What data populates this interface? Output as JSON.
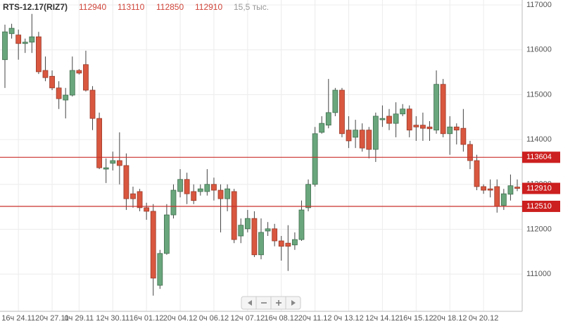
{
  "chart_data": {
    "type": "candlestick",
    "title": "RTS-12.17(RIZ7)",
    "volume_label": "15,5 тыс.",
    "up_color": "#6aa67c",
    "down_color": "#d9573f",
    "level_color": "#c9302c",
    "grid": true,
    "categories": [
      null,
      null,
      "16ч 24.11",
      null,
      null,
      null,
      null,
      "20ч 27.11",
      null,
      null,
      null,
      "0ч 29.11",
      null,
      null,
      null,
      null,
      "12ч 30.11",
      null,
      null,
      null,
      null,
      "16ч 01.12",
      null,
      null,
      null,
      null,
      "20ч 04.12",
      null,
      null,
      null,
      null,
      "0ч 06.12",
      null,
      null,
      null,
      null,
      "12ч 07.12",
      null,
      null,
      null,
      null,
      "16ч 08.12",
      null,
      null,
      null,
      null,
      "20ч 11.12",
      null,
      null,
      null,
      null,
      "0ч 13.12",
      null,
      null,
      null,
      null,
      "12ч 14.12",
      null,
      null,
      null,
      null,
      "16ч 15.12",
      null,
      null,
      null,
      null,
      "20ч 18.12",
      null,
      null,
      null,
      null,
      "0ч 20.12",
      null,
      null,
      null,
      null,
      null
    ],
    "open": [
      115780,
      116360,
      116330,
      116140,
      116170,
      116290,
      115540,
      115410,
      115150,
      114880,
      114990,
      115540,
      115670,
      115100,
      114470,
      113340,
      113470,
      113530,
      113420,
      112790,
      112840,
      112480,
      112400,
      110750,
      111460,
      112320,
      112840,
      113110,
      112840,
      112840,
      112840,
      113000,
      112870,
      112680,
      112840,
      111850,
      112010,
      112240,
      111430,
      111960,
      112010,
      111740,
      111690,
      111650,
      111770,
      112480,
      113000,
      114160,
      114320,
      114600,
      115100,
      114210,
      114050,
      114210,
      114210,
      113780,
      114440,
      114520,
      114360,
      114570,
      114680,
      114320,
      114320,
      114280,
      114210,
      115230,
      114130,
      114280,
      114250,
      113890,
      113530,
      112950,
      112900,
      112950,
      112530,
      112780,
      112940
    ],
    "high": [
      116560,
      116580,
      116450,
      116250,
      116800,
      116400,
      115850,
      115540,
      115300,
      115150,
      115850,
      115570,
      115980,
      115190,
      114600,
      113580,
      113730,
      114160,
      113690,
      112950,
      112900,
      112590,
      112560,
      111540,
      112560,
      113000,
      113340,
      113260,
      113000,
      113000,
      113340,
      113150,
      113000,
      113000,
      112900,
      112240,
      112430,
      112400,
      112240,
      112160,
      112120,
      111850,
      112090,
      111930,
      112640,
      113110,
      114280,
      114520,
      115350,
      115150,
      115150,
      114520,
      114440,
      114360,
      114280,
      114600,
      114760,
      114680,
      114830,
      114790,
      114760,
      114520,
      114600,
      114410,
      115540,
      115350,
      114520,
      114360,
      114680,
      113970,
      113660,
      113000,
      113110,
      113110,
      112900,
      113220,
      113110
    ],
    "low": [
      115150,
      116250,
      115780,
      115930,
      115930,
      115460,
      115300,
      115100,
      114680,
      114470,
      114960,
      115450,
      115070,
      114210,
      113340,
      113030,
      113310,
      113000,
      112430,
      112480,
      112400,
      112210,
      110520,
      110670,
      111430,
      112240,
      112710,
      112560,
      112560,
      112750,
      112750,
      112640,
      111930,
      112400,
      111690,
      111690,
      111930,
      111380,
      111330,
      111850,
      111620,
      111300,
      111070,
      111540,
      111740,
      112400,
      112950,
      114130,
      114250,
      114520,
      114050,
      113810,
      113810,
      113730,
      113580,
      113500,
      114280,
      114210,
      114050,
      114520,
      114050,
      113970,
      113970,
      113970,
      114130,
      114050,
      113660,
      113890,
      113730,
      113340,
      112870,
      112790,
      112710,
      112370,
      112430,
      112640,
      112850
    ],
    "close": [
      116400,
      116480,
      116140,
      116170,
      116290,
      115510,
      115380,
      115150,
      114910,
      114990,
      115540,
      115480,
      115100,
      114470,
      113370,
      113370,
      113530,
      113420,
      112680,
      112680,
      112480,
      112400,
      110910,
      111460,
      112320,
      112870,
      113110,
      112790,
      112640,
      112900,
      113000,
      112870,
      112680,
      112900,
      111770,
      112090,
      112240,
      111430,
      111930,
      112010,
      111740,
      111620,
      111620,
      111770,
      112430,
      113000,
      114130,
      114360,
      114600,
      115100,
      114130,
      113970,
      114210,
      113810,
      113780,
      114520,
      114470,
      114360,
      114570,
      114680,
      114210,
      114280,
      114250,
      114240,
      115230,
      114130,
      114280,
      114210,
      113890,
      113530,
      112950,
      112870,
      112870,
      112510,
      112790,
      112970,
      112910
    ],
    "levels": [
      113604,
      112510
    ],
    "ylim": [
      110170,
      117110
    ],
    "yticks": [
      111000,
      112000,
      113000,
      114000,
      115000,
      116000,
      117000
    ]
  }
}
